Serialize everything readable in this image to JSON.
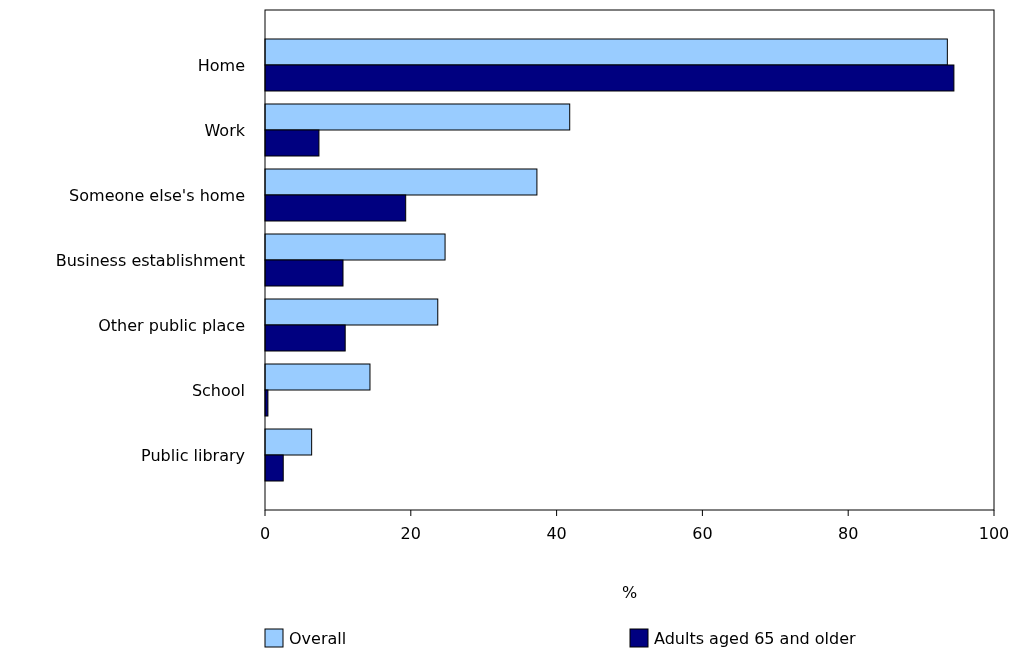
{
  "chart_data": {
    "type": "bar",
    "orientation": "horizontal",
    "categories": [
      "Home",
      "Work",
      "Someone else's home",
      "Business establishment",
      "Other public place",
      "School",
      "Public library"
    ],
    "series": [
      {
        "name": "Overall",
        "color": "#99ccff",
        "values": [
          93.6,
          41.8,
          37.3,
          24.7,
          23.7,
          14.4,
          6.4
        ]
      },
      {
        "name": "Adults aged 65 and older",
        "color": "#000080",
        "values": [
          94.5,
          7.4,
          19.3,
          10.7,
          11.0,
          0.4,
          2.5
        ]
      }
    ],
    "xlim": [
      0,
      100
    ],
    "xticks": [
      0,
      20,
      40,
      60,
      80,
      100
    ],
    "xlabel": "%",
    "grid": false,
    "legend": "bottom"
  }
}
